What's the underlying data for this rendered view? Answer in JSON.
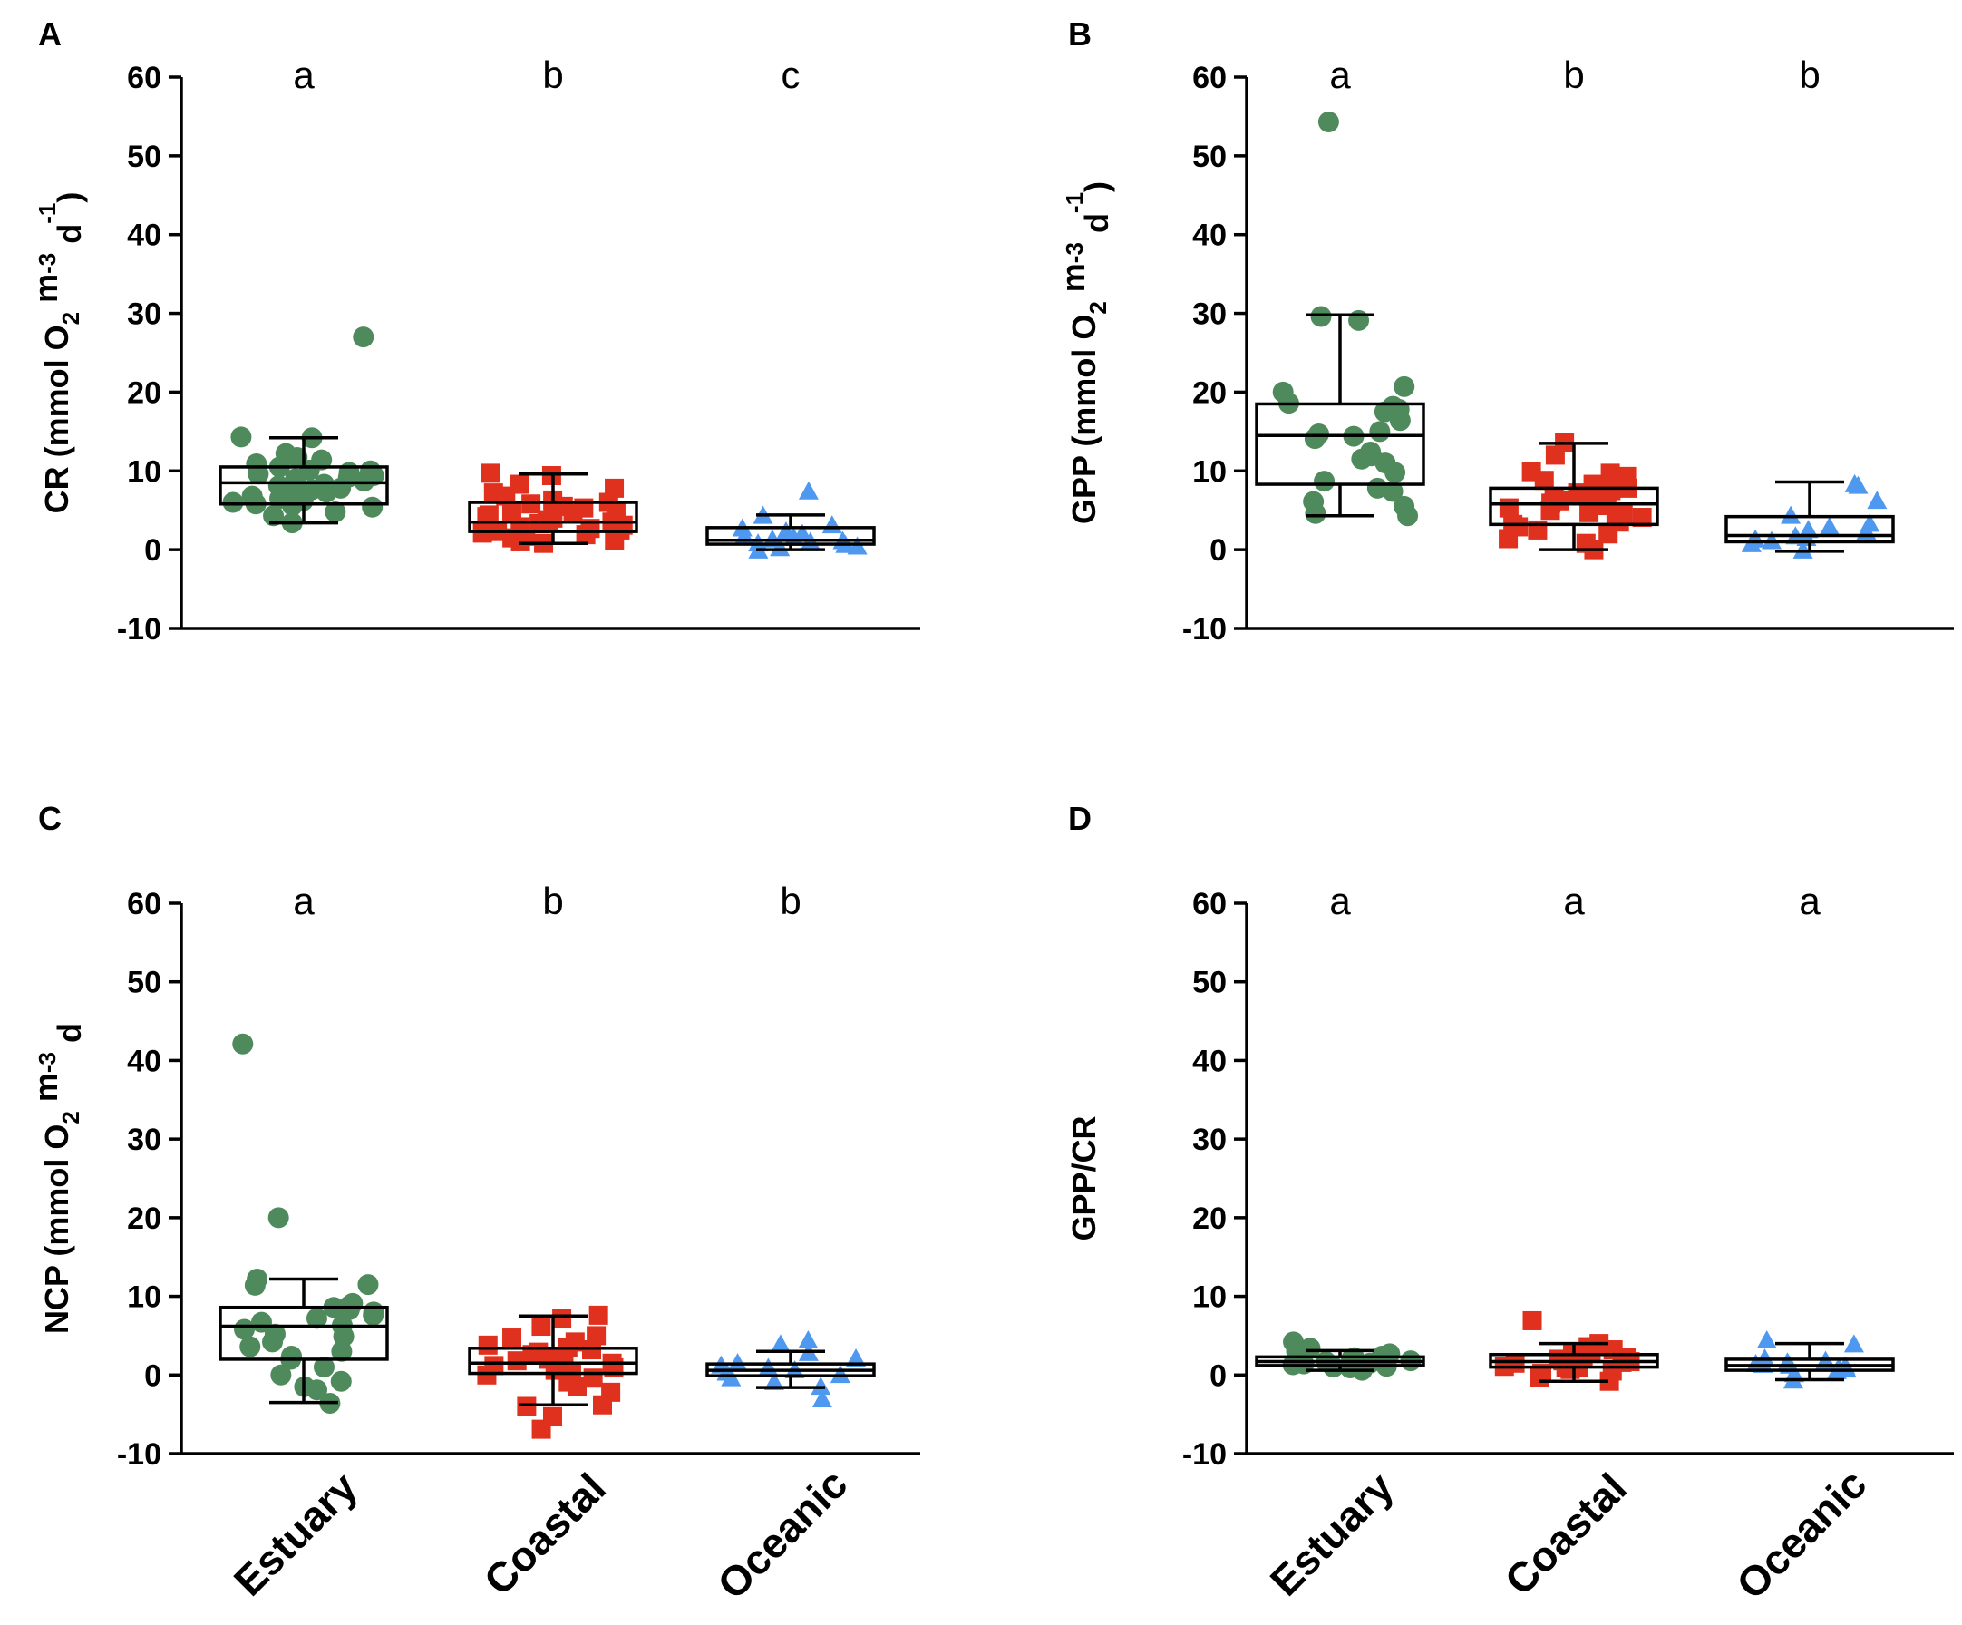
{
  "figure": {
    "categories": [
      "Estuary",
      "Coastal",
      "Oceanic"
    ],
    "colors": {
      "estuary": "#4e8a5c",
      "coastal": "#e0301e",
      "oceanic": "#4f98ef",
      "axis": "#000000"
    },
    "markers": [
      "circle",
      "square",
      "triangle"
    ]
  },
  "chart_data": [
    {
      "panel": "A",
      "type": "box-scatter",
      "ylabel_parts": [
        "CR (mmol O",
        "2",
        " m",
        "-3",
        " d",
        "-1",
        ")"
      ],
      "ylim": [
        -10,
        60
      ],
      "yticks": [
        -10,
        0,
        10,
        20,
        30,
        40,
        50,
        60
      ],
      "categories": [
        "Estuary",
        "Coastal",
        "Oceanic"
      ],
      "show_xlabels": false,
      "letters": [
        "a",
        "b",
        "c"
      ],
      "groups": [
        {
          "name": "Estuary",
          "box": {
            "q1": 5.8,
            "median": 8.5,
            "q3": 10.5,
            "whisker_low": 3.4,
            "whisker_high": 14.2
          },
          "points": [
            27,
            14.3,
            14.2,
            12.2,
            11.7,
            11.4,
            10.9,
            10.5,
            10.1,
            10.0,
            9.8,
            9.6,
            9.4,
            9.2,
            9.0,
            8.7,
            8.5,
            8.3,
            8.1,
            7.8,
            7.6,
            7.3,
            7.0,
            6.8,
            6.5,
            6.2,
            6.0,
            5.8,
            5.6,
            5.4,
            4.8,
            4.3,
            3.4
          ]
        },
        {
          "name": "Coastal",
          "box": {
            "q1": 2.3,
            "median": 3.5,
            "q3": 6.0,
            "whisker_low": 0.8,
            "whisker_high": 9.6
          },
          "points": [
            9.7,
            9.4,
            8.3,
            7.8,
            7.2,
            6.8,
            6.3,
            6.0,
            5.8,
            5.5,
            5.3,
            5.0,
            4.8,
            4.6,
            4.4,
            4.2,
            4.0,
            3.8,
            3.6,
            3.5,
            3.3,
            3.1,
            2.9,
            2.7,
            2.5,
            2.3,
            2.1,
            1.9,
            1.7,
            1.5,
            1.2,
            1.0,
            0.8
          ]
        },
        {
          "name": "Oceanic",
          "box": {
            "q1": 0.7,
            "median": 1.2,
            "q3": 2.8,
            "whisker_low": 0.0,
            "whisker_high": 4.4
          },
          "points": [
            7.3,
            4.2,
            3.0,
            2.6,
            2.2,
            1.9,
            1.6,
            1.4,
            1.2,
            1.0,
            0.9,
            0.7,
            0.5,
            0.3,
            0.1,
            -0.2
          ]
        }
      ]
    },
    {
      "panel": "B",
      "type": "box-scatter",
      "ylabel_parts": [
        "GPP (mmol O",
        "2",
        " m",
        "-3",
        " d",
        "-1",
        ")"
      ],
      "ylim": [
        -10,
        60
      ],
      "yticks": [
        -10,
        0,
        10,
        20,
        30,
        40,
        50,
        60
      ],
      "categories": [
        "Estuary",
        "Coastal",
        "Oceanic"
      ],
      "show_xlabels": false,
      "letters": [
        "a",
        "b",
        "b"
      ],
      "groups": [
        {
          "name": "Estuary",
          "box": {
            "q1": 8.3,
            "median": 14.5,
            "q3": 18.5,
            "whisker_low": 4.3,
            "whisker_high": 29.8
          },
          "points": [
            54.3,
            29.6,
            29.1,
            20.7,
            20.0,
            18.6,
            18.2,
            17.8,
            17.5,
            16.4,
            15.0,
            14.7,
            14.4,
            14.1,
            12.4,
            11.9,
            11.5,
            11.0,
            9.8,
            8.7,
            7.8,
            7.4,
            6.1,
            5.5,
            4.6,
            4.3
          ]
        },
        {
          "name": "Coastal",
          "box": {
            "q1": 3.2,
            "median": 5.8,
            "q3": 7.8,
            "whisker_low": 0.0,
            "whisker_high": 13.5
          },
          "points": [
            13.6,
            12.0,
            9.9,
            9.7,
            9.3,
            8.8,
            8.3,
            7.8,
            7.5,
            7.2,
            6.9,
            6.5,
            6.2,
            5.9,
            5.6,
            5.3,
            5.0,
            4.7,
            4.4,
            4.1,
            3.8,
            3.5,
            3.2,
            2.9,
            2.5,
            2.0,
            1.4,
            0.8,
            0.0
          ]
        },
        {
          "name": "Oceanic",
          "box": {
            "q1": 1.0,
            "median": 1.8,
            "q3": 4.2,
            "whisker_low": -0.2,
            "whisker_high": 8.6
          },
          "points": [
            8.2,
            8.0,
            6.1,
            4.2,
            3.2,
            2.8,
            2.4,
            2.0,
            1.8,
            1.6,
            1.4,
            1.2,
            1.0,
            0.6,
            -0.2
          ]
        }
      ]
    },
    {
      "panel": "C",
      "type": "box-scatter",
      "ylabel_parts": [
        "NCP (mmol O",
        "2",
        " m",
        "-3",
        " d",
        "",
        ""
      ],
      "ylim": [
        -10,
        60
      ],
      "yticks": [
        -10,
        0,
        10,
        20,
        30,
        40,
        50,
        60
      ],
      "categories": [
        "Estuary",
        "Coastal",
        "Oceanic"
      ],
      "show_xlabels": true,
      "letters": [
        "a",
        "b",
        "b"
      ],
      "groups": [
        {
          "name": "Estuary",
          "box": {
            "q1": 2.0,
            "median": 6.2,
            "q3": 8.6,
            "whisker_low": -3.5,
            "whisker_high": 12.2
          },
          "points": [
            42.1,
            20.0,
            12.2,
            11.5,
            11.4,
            9.1,
            8.8,
            8.6,
            8.3,
            8.0,
            7.6,
            7.2,
            6.7,
            6.3,
            5.8,
            5.2,
            4.9,
            4.2,
            3.6,
            3.0,
            2.4,
            2.0,
            1.0,
            0.0,
            -0.8,
            -1.5,
            -1.9,
            -3.6
          ]
        },
        {
          "name": "Coastal",
          "box": {
            "q1": 0.2,
            "median": 1.5,
            "q3": 3.4,
            "whisker_low": -3.8,
            "whisker_high": 7.5
          },
          "points": [
            7.6,
            7.2,
            6.2,
            5.0,
            4.7,
            4.2,
            3.8,
            3.5,
            3.2,
            2.9,
            2.6,
            2.3,
            2.0,
            1.8,
            1.5,
            1.2,
            0.9,
            0.6,
            0.3,
            0.0,
            -0.4,
            -0.9,
            -1.5,
            -2.2,
            -3.8,
            -4.0,
            -5.3,
            -6.9
          ]
        },
        {
          "name": "Oceanic",
          "box": {
            "q1": -0.1,
            "median": 0.6,
            "q3": 1.4,
            "whisker_low": -1.6,
            "whisker_high": 3.0
          },
          "points": [
            4.3,
            3.8,
            2.7,
            2.0,
            1.4,
            1.1,
            0.8,
            0.5,
            0.2,
            -0.1,
            -0.5,
            -1.0,
            -1.6,
            -3.2
          ]
        }
      ]
    },
    {
      "panel": "D",
      "type": "box-scatter",
      "ylabel_parts": [
        "GPP/CR",
        "",
        "",
        "",
        "",
        "",
        ""
      ],
      "ylim": [
        -10,
        60
      ],
      "yticks": [
        -10,
        0,
        10,
        20,
        30,
        40,
        50,
        60
      ],
      "categories": [
        "Estuary",
        "Coastal",
        "Oceanic"
      ],
      "show_xlabels": true,
      "letters": [
        "a",
        "a",
        "a"
      ],
      "groups": [
        {
          "name": "Estuary",
          "box": {
            "q1": 1.2,
            "median": 1.7,
            "q3": 2.3,
            "whisker_low": 0.6,
            "whisker_high": 3.1
          },
          "points": [
            4.2,
            3.4,
            3.0,
            2.7,
            2.4,
            2.2,
            2.0,
            1.8,
            1.7,
            1.6,
            1.5,
            1.4,
            1.3,
            1.2,
            1.1,
            1.0,
            0.9,
            0.8,
            0.6
          ]
        },
        {
          "name": "Coastal",
          "box": {
            "q1": 1.0,
            "median": 1.7,
            "q3": 2.6,
            "whisker_low": -0.8,
            "whisker_high": 4.0
          },
          "points": [
            6.9,
            4.0,
            3.6,
            3.2,
            2.9,
            2.6,
            2.4,
            2.2,
            2.0,
            1.8,
            1.7,
            1.6,
            1.5,
            1.3,
            1.1,
            1.0,
            0.9,
            0.7,
            0.5,
            0.2,
            -0.3,
            -0.8
          ]
        },
        {
          "name": "Oceanic",
          "box": {
            "q1": 0.6,
            "median": 1.2,
            "q3": 2.0,
            "whisker_low": -0.6,
            "whisker_high": 4.0
          },
          "points": [
            4.3,
            3.8,
            2.0,
            1.7,
            1.5,
            1.3,
            1.2,
            1.1,
            1.0,
            0.8,
            0.6,
            0.4,
            0.0,
            -0.8
          ]
        }
      ]
    }
  ]
}
